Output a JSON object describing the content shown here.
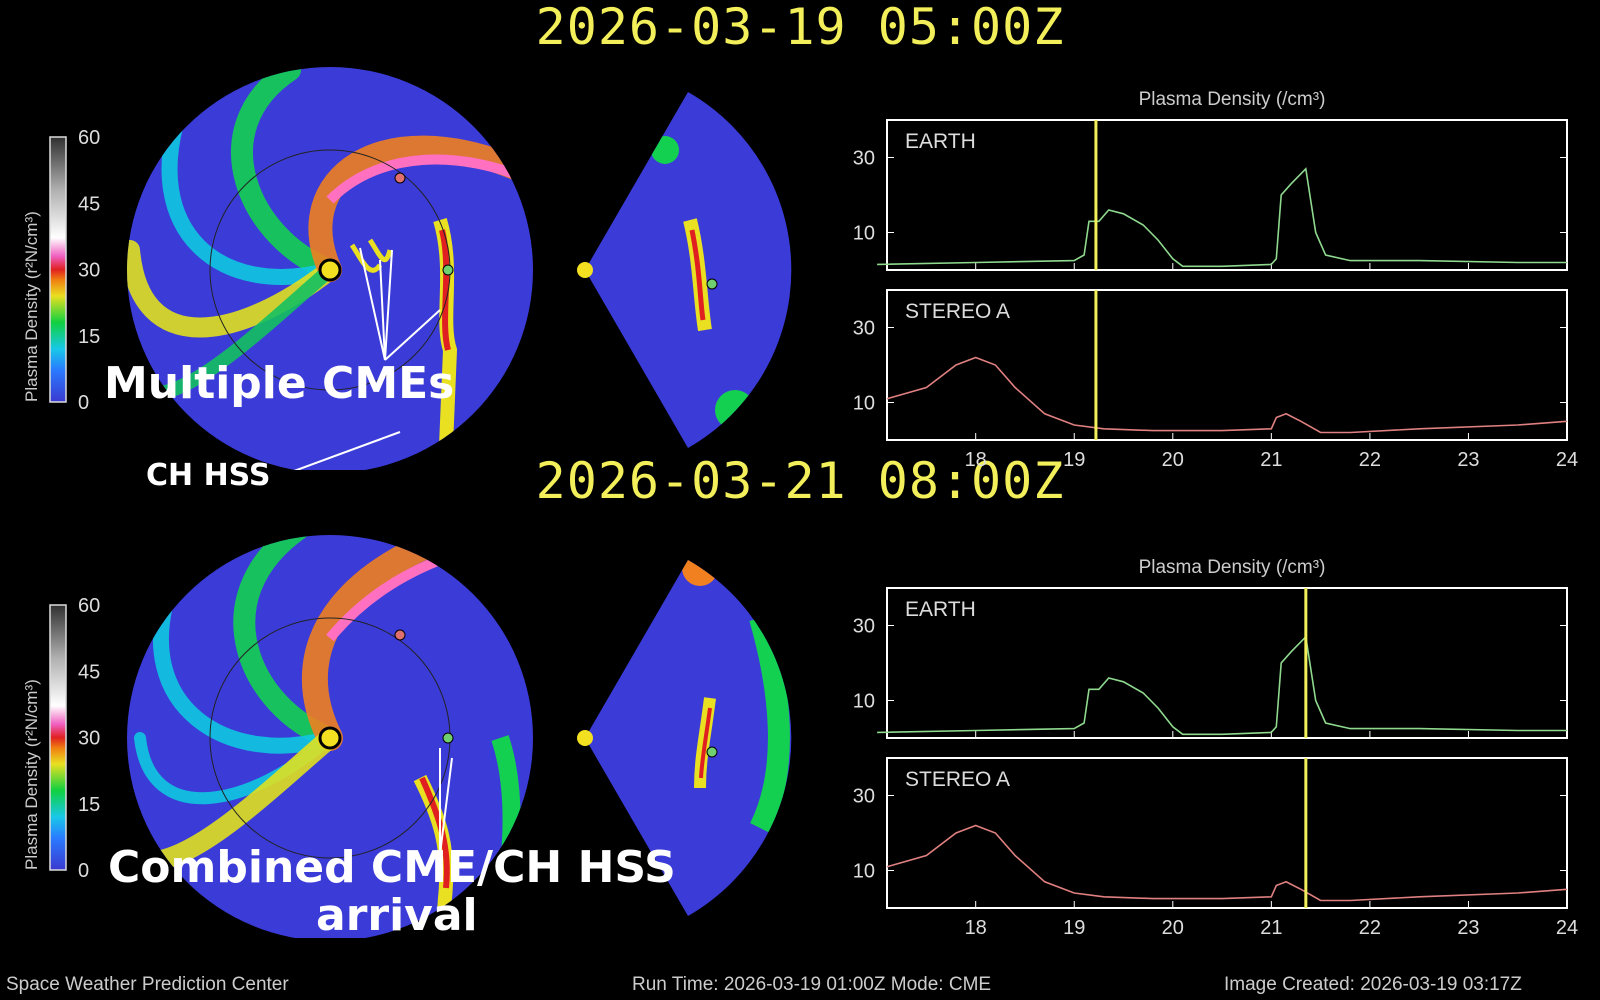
{
  "timestamps": [
    "2026-03-19  05:00Z",
    "2026-03-21  08:00Z"
  ],
  "colorbar": {
    "label": "Plasma Density (r²N/cm³)",
    "ticks": [
      "60",
      "45",
      "30",
      "15",
      "0"
    ]
  },
  "annotations": {
    "top_main": "Multiple CMEs",
    "top_secondary": "CH HSS",
    "bottom_line1": "Combined CME/CH HSS",
    "bottom_line2": "arrival"
  },
  "footer": {
    "center": "Space Weather Prediction Center",
    "runtime": "Run Time: 2026-03-19 01:00Z  Mode: CME",
    "created": "Image Created: 2026-03-19 03:17Z"
  },
  "chart_data": [
    {
      "type": "line",
      "title": "Plasma Density (/cm³)",
      "panel": "EARTH",
      "series_color": "#8fd98f",
      "marker_x": 19.22,
      "x": [
        17.0,
        18.0,
        19.0,
        19.1,
        19.15,
        19.25,
        19.35,
        19.5,
        19.7,
        19.85,
        20.0,
        20.1,
        20.5,
        21.0,
        21.05,
        21.1,
        21.2,
        21.35,
        21.45,
        21.55,
        21.8,
        22.5,
        23.5,
        24.0
      ],
      "y": [
        1.5,
        2,
        2.5,
        4,
        13,
        13,
        16,
        15,
        12,
        8,
        3,
        1,
        1,
        1.5,
        3,
        20,
        23,
        27,
        10,
        4,
        2.5,
        2.5,
        2,
        2
      ],
      "ylim": [
        0,
        40
      ],
      "xlim": [
        17.1,
        24
      ],
      "yticks": [
        10,
        30
      ],
      "xticks": [
        18,
        19,
        20,
        21,
        22,
        23,
        24
      ]
    },
    {
      "type": "line",
      "panel": "STEREO A",
      "series_color": "#e08080",
      "marker_x": 19.22,
      "x": [
        17.1,
        17.5,
        17.8,
        18.0,
        18.2,
        18.4,
        18.7,
        19.0,
        19.3,
        19.8,
        20.5,
        21.0,
        21.05,
        21.15,
        21.3,
        21.5,
        21.8,
        22.5,
        23.5,
        24.0
      ],
      "y": [
        11,
        14,
        20,
        22,
        20,
        14,
        7,
        4,
        3,
        2.5,
        2.5,
        3,
        6,
        7,
        5,
        2,
        2,
        3,
        4,
        5
      ],
      "ylim": [
        0,
        40
      ],
      "xlim": [
        17.1,
        24
      ],
      "yticks": [
        10,
        30
      ],
      "xticks": [
        18,
        19,
        20,
        21,
        22,
        23,
        24
      ]
    },
    {
      "type": "line",
      "title": "Plasma Density (/cm³)",
      "panel": "EARTH",
      "series_color": "#8fd98f",
      "marker_x": 21.35,
      "x": [
        17.0,
        18.0,
        19.0,
        19.1,
        19.15,
        19.25,
        19.35,
        19.5,
        19.7,
        19.85,
        20.0,
        20.1,
        20.5,
        21.0,
        21.05,
        21.1,
        21.2,
        21.35,
        21.45,
        21.55,
        21.8,
        22.5,
        23.5,
        24.0
      ],
      "y": [
        1.5,
        2,
        2.5,
        4,
        13,
        13,
        16,
        15,
        12,
        8,
        3,
        1,
        1,
        1.5,
        3,
        20,
        23,
        27,
        10,
        4,
        2.5,
        2.5,
        2,
        2
      ],
      "ylim": [
        0,
        40
      ],
      "xlim": [
        17.1,
        24
      ],
      "yticks": [
        10,
        30
      ],
      "xticks": [
        18,
        19,
        20,
        21,
        22,
        23,
        24
      ]
    },
    {
      "type": "line",
      "panel": "STEREO A",
      "series_color": "#e08080",
      "marker_x": 21.35,
      "x": [
        17.1,
        17.5,
        17.8,
        18.0,
        18.2,
        18.4,
        18.7,
        19.0,
        19.3,
        19.8,
        20.5,
        21.0,
        21.05,
        21.15,
        21.3,
        21.5,
        21.8,
        22.5,
        23.5,
        24.0
      ],
      "y": [
        11,
        14,
        20,
        22,
        20,
        14,
        7,
        4,
        3,
        2.5,
        2.5,
        3,
        6,
        7,
        5,
        2,
        2,
        3,
        4,
        5
      ],
      "ylim": [
        0,
        40
      ],
      "xlim": [
        17.1,
        24
      ],
      "yticks": [
        10,
        30
      ],
      "xticks": [
        18,
        19,
        20,
        21,
        22,
        23,
        24
      ]
    }
  ]
}
